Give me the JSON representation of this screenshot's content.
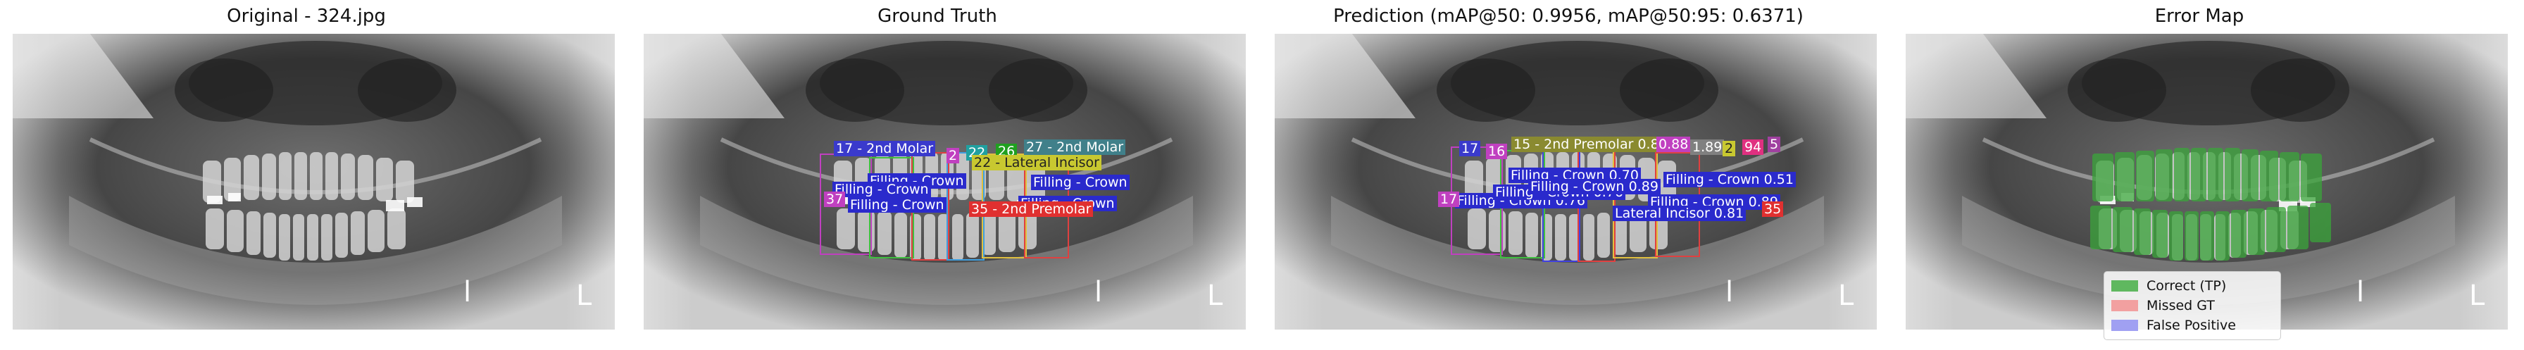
{
  "panels": {
    "original_title": "Original - 324.jpg",
    "gt_title": "Ground Truth",
    "pred_title": "Prediction (mAP@50: 0.9956, mAP@50:95: 0.6371)",
    "error_title": "Error Map"
  },
  "gt_labels": {
    "l1": "17 - 2nd Molar",
    "l2": "2",
    "l3": "22",
    "l4": "26",
    "l5": "27 - 2nd Molar",
    "l6": "22 - Lateral Incisor",
    "l7": "Filling - Crown",
    "l8": "Filling - Crown",
    "l9": "Filling - Crown",
    "l10": "Filling - Crown",
    "l11": "Filling - Crown",
    "l12": "37",
    "l13": "35 - 2nd Premolar"
  },
  "pred_labels": {
    "l1": "17",
    "l2": "16",
    "l3": "15 - 2nd Premolar 0.87",
    "l4": "0.88",
    "l5": "1.89",
    "l6": "2",
    "l7": "94",
    "l8": "5",
    "l9": "Filling - Crown 0.70",
    "l10": "Filling - Crown 0.51",
    "l11": "Filling - Crown 0.76",
    "l12": "Filling - Crown 0.89",
    "l13": "17",
    "l14": "Filling - Crown 0.76",
    "l15": "Filling - Crown 0.89",
    "l16": "Lateral Incisor 0.81",
    "l17": "35"
  },
  "legend": {
    "correct": "Correct (TP)",
    "missed": "Missed GT",
    "false_positive": "False Positive"
  },
  "colors": {
    "tp": "#5fb85f",
    "missed": "#f2a0a0",
    "fp": "#a0a0f2"
  }
}
